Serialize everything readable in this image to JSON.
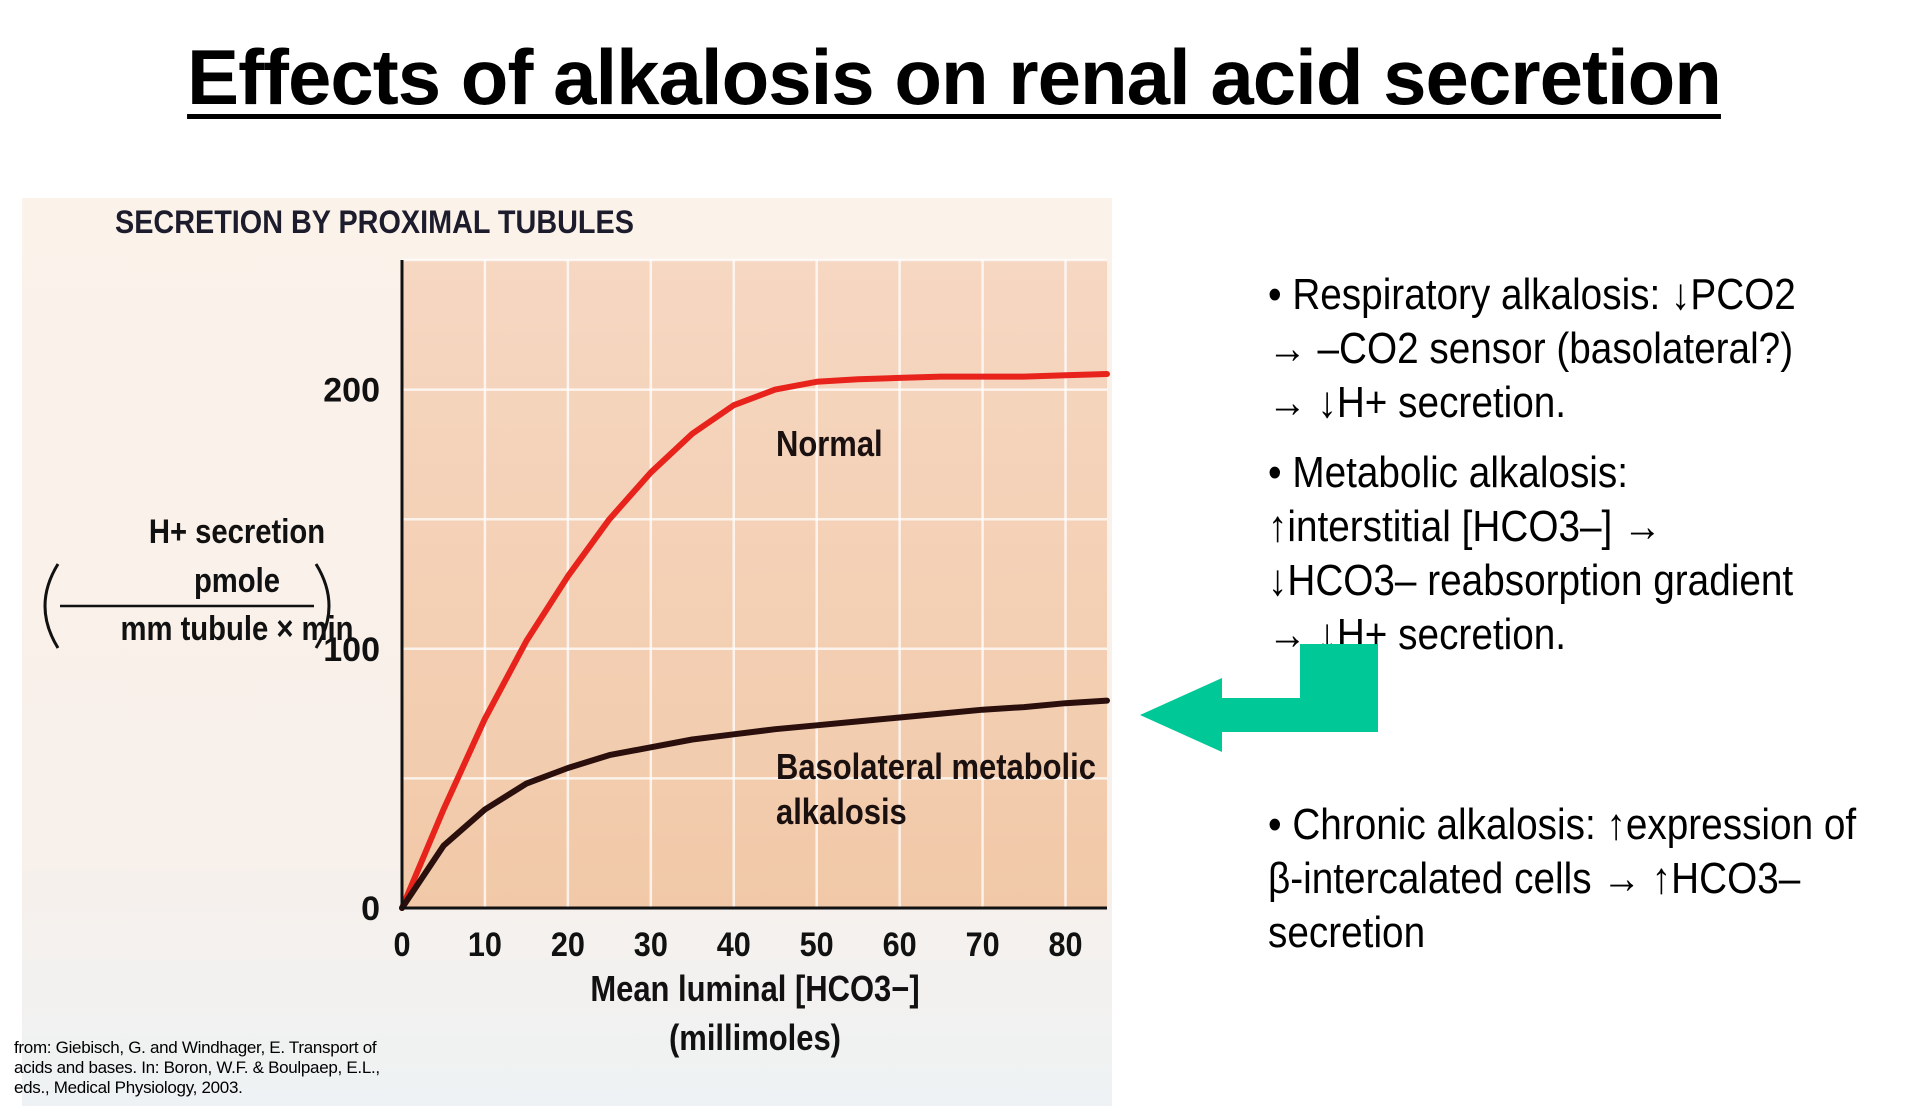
{
  "title": "Effects of alkalosis on renal acid secretion",
  "chart_data": {
    "type": "line",
    "title": "SECRETION BY PROXIMAL TUBULES",
    "ylabel_main": "H+ secretion",
    "ylabel_numerator": "pmole",
    "ylabel_denominator": "mm tubule × min",
    "xlabel": "Mean luminal [HCO3−]",
    "xlabel_unit": "(millimoles)",
    "xlim": [
      0,
      85
    ],
    "ylim": [
      0,
      250
    ],
    "x_ticks": [
      0,
      10,
      20,
      30,
      40,
      50,
      60,
      70,
      80
    ],
    "y_ticks": [
      0,
      100,
      200
    ],
    "grid": true,
    "series": [
      {
        "name": "Normal",
        "label_lines": [
          "Normal"
        ],
        "color": "#e8231c",
        "x": [
          0,
          5,
          10,
          15,
          20,
          25,
          30,
          35,
          40,
          45,
          50,
          55,
          60,
          65,
          70,
          75,
          80,
          85
        ],
        "y": [
          0,
          38,
          73,
          103,
          128,
          150,
          168,
          183,
          194,
          200,
          203,
          204,
          204.5,
          205,
          205,
          205,
          205.5,
          206
        ]
      },
      {
        "name": "Basolateral metabolic alkalosis",
        "label_lines": [
          "Basolateral metabolic",
          "alkalosis"
        ],
        "color": "#2a0f0c",
        "x": [
          0,
          5,
          10,
          15,
          20,
          25,
          30,
          35,
          40,
          45,
          50,
          55,
          60,
          65,
          70,
          75,
          80,
          85
        ],
        "y": [
          0,
          24,
          38,
          48,
          54,
          59,
          62,
          65,
          67,
          69,
          70.5,
          72,
          73.5,
          75,
          76.5,
          77.5,
          79,
          80
        ]
      }
    ]
  },
  "bullets": {
    "respiratory": "• Respiratory alkalosis: ↓PCO2 → –CO2 sensor (basolateral?) → ↓H+ secretion.",
    "metabolic": "• Metabolic alkalosis: ↑interstitial [HCO3–] → ↓HCO3– reabsorption gradient → ↓H+ secretion.",
    "chronic": "• Chronic alkalosis: ↑expression of β-intercalated cells → ↑HCO3– secretion"
  },
  "arrow": {
    "icon": "left-arrow-icon",
    "color": "#00c896"
  },
  "citation": "from: Giebisch, G. and Windhager, E. Transport of acids and bases. In: Boron, W.F. & Boulpaep, E.L., eds., Medical Physiology, 2003."
}
